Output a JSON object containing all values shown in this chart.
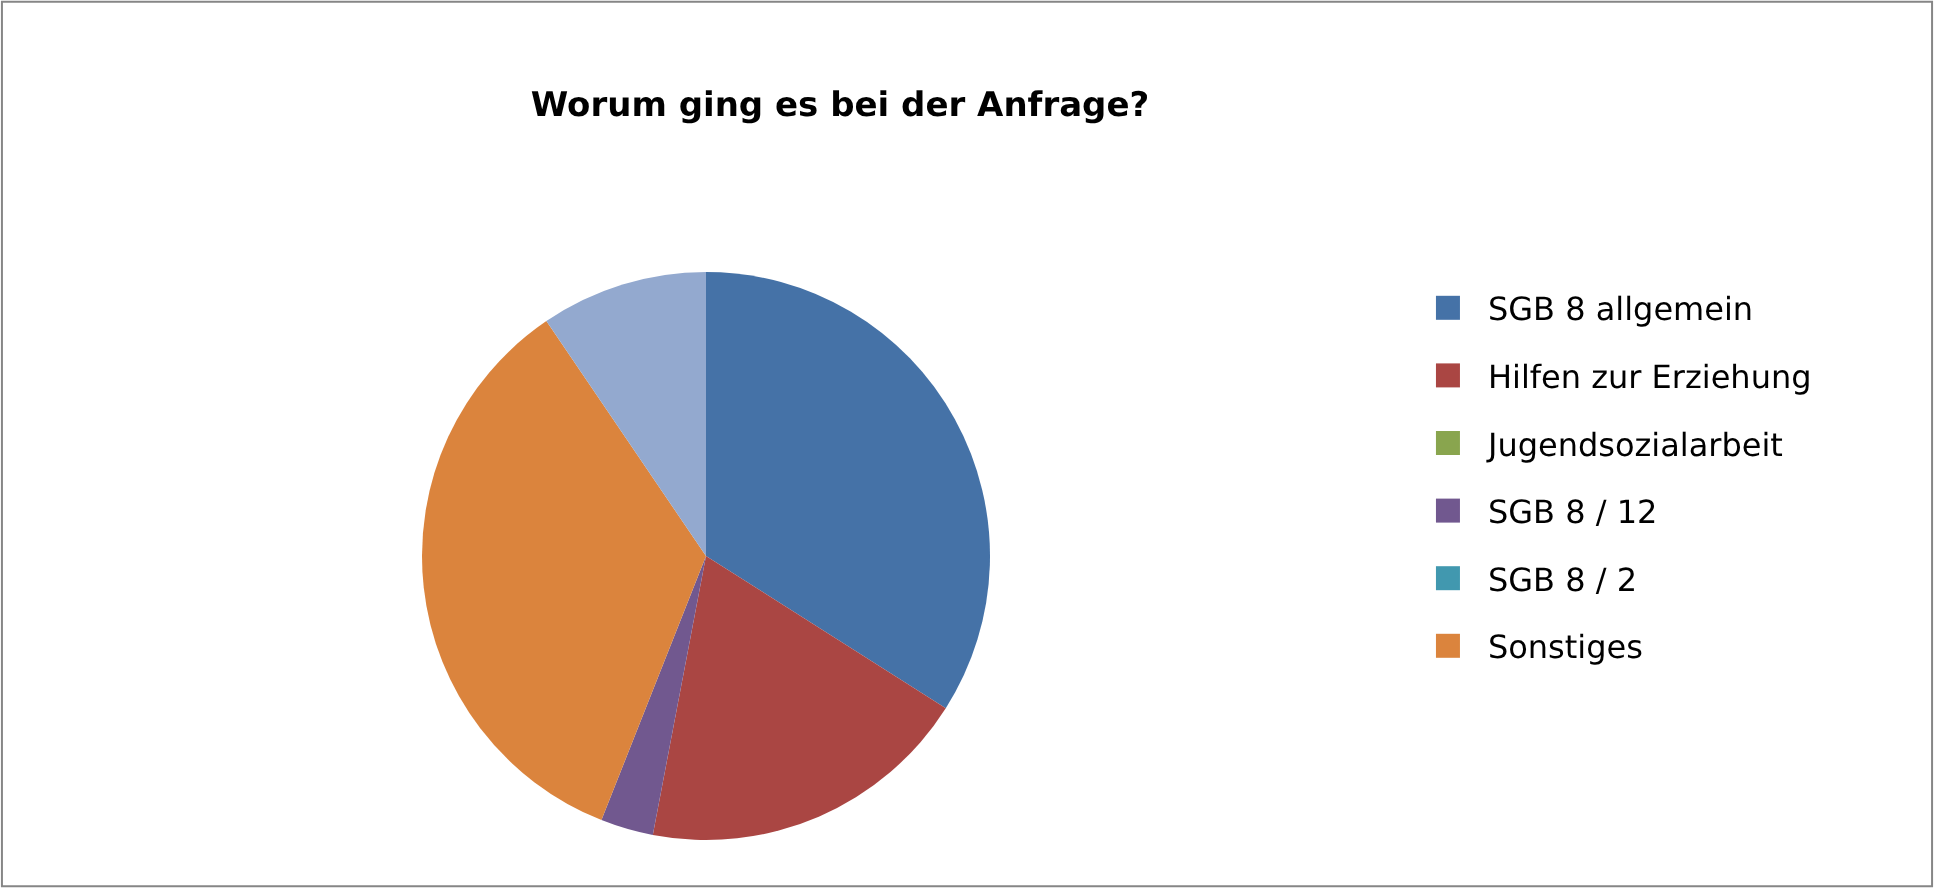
{
  "chart_data": {
    "type": "pie",
    "title": "Worum ging es bei der Anfrage?",
    "categories": [
      "SGB 8 allgemein",
      "Hilfen zur Erziehung",
      "Jugendsozialarbeit",
      "SGB 8 / 12",
      "SGB 8 / 2",
      "Sonstiges",
      null
    ],
    "values": [
      34,
      19,
      0,
      3,
      0,
      34.5,
      9.5
    ],
    "colors": [
      "#4572a7",
      "#aa4643",
      "#89a54e",
      "#71588f",
      "#4198af",
      "#db843d",
      "#93a9cf"
    ],
    "legend": "right"
  }
}
